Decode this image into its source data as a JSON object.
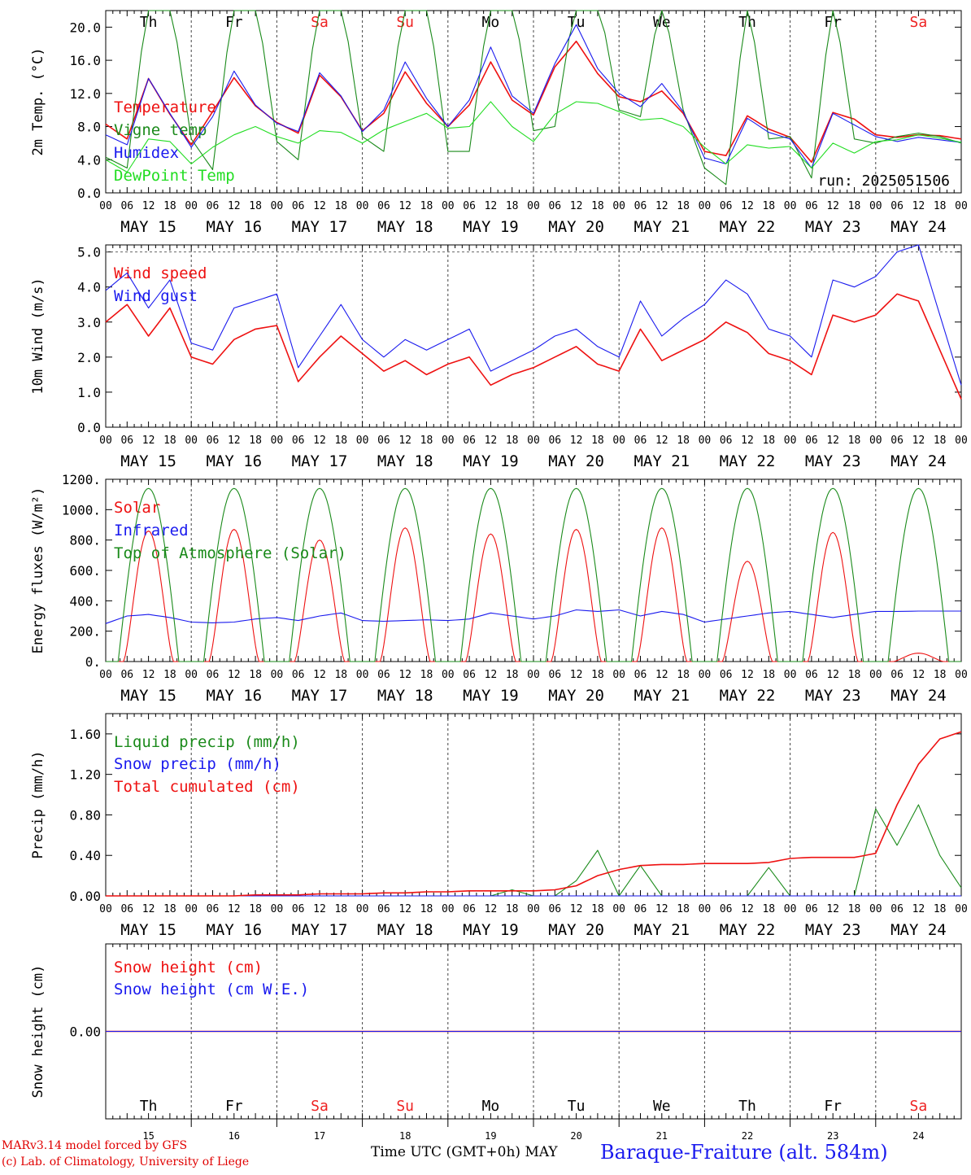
{
  "footer": {
    "model": "MARv3.14 model forced by GFS",
    "lab": "(c) Lab. of Climatology, University of Liege",
    "time_label": "Time UTC (GMT+0h) MAY",
    "station": "Baraque-Fraiture (alt. 584m)"
  },
  "colors": {
    "red": "#ee1111",
    "green": "#1a8a1a",
    "blue": "#1a1aee",
    "lightgreen": "#22dd22",
    "weekend": "#ee2222",
    "weekday": "#000000"
  },
  "chart_data": [
    {
      "type": "line",
      "ylabel": "2m Temp. (°C)",
      "yticks": [
        "0.0",
        "4.0",
        "8.0",
        "12.0",
        "16.0",
        "20.0"
      ],
      "ylim": [
        0,
        22
      ],
      "day_abbr": [
        "Th",
        "Fr",
        "Sa",
        "Su",
        "Mo",
        "Tu",
        "We",
        "Th",
        "Fr",
        "Sa"
      ],
      "weekend": [
        false,
        false,
        true,
        true,
        false,
        false,
        false,
        false,
        false,
        true
      ],
      "hour_ticks": [
        "00",
        "06",
        "12",
        "18"
      ],
      "date_labels": [
        "MAY 15",
        "MAY 16",
        "MAY 17",
        "MAY 18",
        "MAY 19",
        "MAY 20",
        "MAY 21",
        "MAY 22",
        "MAY 23",
        "MAY 24"
      ],
      "run_label": "run: 2025051506",
      "x_hours": [
        0,
        6,
        12,
        18,
        24,
        30,
        36,
        42,
        48,
        54,
        60,
        66,
        72,
        78,
        84,
        90,
        96,
        102,
        108,
        114,
        120,
        126,
        132,
        138,
        144,
        150,
        156,
        162,
        168,
        174,
        180,
        186,
        192,
        198,
        204,
        210,
        216,
        222,
        228,
        234,
        240
      ],
      "series": [
        {
          "name": "Temperature",
          "color": "#ee1111",
          "values": [
            8.3,
            6.5,
            13.8,
            9.5,
            5.8,
            9.8,
            13.9,
            10.5,
            8.5,
            7.2,
            14.2,
            11.6,
            7.5,
            9.6,
            14.6,
            10.8,
            8.0,
            10.6,
            15.8,
            11.2,
            9.4,
            15.2,
            18.3,
            14.4,
            11.6,
            11.0,
            12.3,
            9.6,
            5.0,
            4.5,
            9.3,
            7.7,
            6.7,
            3.7,
            9.7,
            8.9,
            7.0,
            6.7,
            7.0,
            6.9,
            6.5
          ]
        },
        {
          "name": "Vigne temp",
          "color": "#1a8a1a",
          "values": [
            4.3,
            3.0,
            24.0,
            24.0,
            6.5,
            2.8,
            24.0,
            24.0,
            6.2,
            4.0,
            24.0,
            24.0,
            6.8,
            5.0,
            24.0,
            24.0,
            5.0,
            5.0,
            24.0,
            24.0,
            7.5,
            8.0,
            24.0,
            24.0,
            10.0,
            9.2,
            24.0,
            10.0,
            3.0,
            1.0,
            24.0,
            6.5,
            6.8,
            1.8,
            24.0,
            6.5,
            6.0,
            6.8,
            7.2,
            6.8,
            6.0
          ]
        },
        {
          "name": "Humidex",
          "color": "#1a1aee",
          "values": [
            7.0,
            5.8,
            13.8,
            9.6,
            5.5,
            9.2,
            14.7,
            10.6,
            8.4,
            7.4,
            14.5,
            11.7,
            7.4,
            10.0,
            15.8,
            11.4,
            8.0,
            11.2,
            17.6,
            11.7,
            9.6,
            15.6,
            20.3,
            15.0,
            12.0,
            10.4,
            13.2,
            9.8,
            4.2,
            3.5,
            9.0,
            7.3,
            6.5,
            3.0,
            9.6,
            8.2,
            6.8,
            6.2,
            6.7,
            6.4,
            6.1
          ]
        },
        {
          "name": "DewPoint Temp",
          "color": "#22dd22",
          "values": [
            4.0,
            2.5,
            6.5,
            6.2,
            3.5,
            5.5,
            7.0,
            8.0,
            6.8,
            6.0,
            7.5,
            7.3,
            6.0,
            7.6,
            8.6,
            9.6,
            7.8,
            8.0,
            11.0,
            8.0,
            6.2,
            9.5,
            11.0,
            10.8,
            9.8,
            8.8,
            9.0,
            8.0,
            5.5,
            3.5,
            5.8,
            5.4,
            5.6,
            3.0,
            6.0,
            4.8,
            6.2,
            6.4,
            7.0,
            6.6,
            6.1
          ]
        }
      ]
    },
    {
      "type": "line",
      "ylabel": "10m Wind (m/s)",
      "yticks": [
        "0.0",
        "1.0",
        "2.0",
        "3.0",
        "4.0",
        "5.0"
      ],
      "ylim": [
        0,
        5.2
      ],
      "hour_ticks": [
        "00",
        "06",
        "12",
        "18"
      ],
      "date_labels": [
        "MAY 15",
        "MAY 16",
        "MAY 17",
        "MAY 18",
        "MAY 19",
        "MAY 20",
        "MAY 21",
        "MAY 22",
        "MAY 23",
        "MAY 24"
      ],
      "x_hours": [
        0,
        6,
        12,
        18,
        24,
        30,
        36,
        42,
        48,
        54,
        60,
        66,
        72,
        78,
        84,
        90,
        96,
        102,
        108,
        114,
        120,
        126,
        132,
        138,
        144,
        150,
        156,
        162,
        168,
        174,
        180,
        186,
        192,
        198,
        204,
        210,
        216,
        222,
        228,
        234,
        240
      ],
      "series": [
        {
          "name": "Wind speed",
          "color": "#ee1111",
          "values": [
            3.0,
            3.5,
            2.6,
            3.4,
            2.0,
            1.8,
            2.5,
            2.8,
            2.9,
            1.3,
            2.0,
            2.6,
            2.1,
            1.6,
            1.9,
            1.5,
            1.8,
            2.0,
            1.2,
            1.5,
            1.7,
            2.0,
            2.3,
            1.8,
            1.6,
            2.8,
            1.9,
            2.2,
            2.5,
            3.0,
            2.7,
            2.1,
            1.9,
            1.5,
            3.2,
            3.0,
            3.2,
            3.8,
            3.6,
            2.2,
            0.8
          ]
        },
        {
          "name": "Wind gust",
          "color": "#1a1aee",
          "values": [
            3.9,
            4.4,
            3.4,
            4.2,
            2.4,
            2.2,
            3.4,
            3.6,
            3.8,
            1.7,
            2.6,
            3.5,
            2.5,
            2.0,
            2.5,
            2.2,
            2.5,
            2.8,
            1.6,
            1.9,
            2.2,
            2.6,
            2.8,
            2.3,
            2.0,
            3.6,
            2.6,
            3.1,
            3.5,
            4.2,
            3.8,
            2.8,
            2.6,
            2.0,
            4.2,
            4.0,
            4.3,
            5.0,
            5.2,
            3.2,
            1.2
          ]
        }
      ]
    },
    {
      "type": "line",
      "ylabel": "Energy fluxes (W/m²)",
      "yticks": [
        "0.",
        "200.",
        "400.",
        "600.",
        "800.",
        "1000.",
        "1200."
      ],
      "ylim": [
        0,
        1200
      ],
      "hour_ticks": [
        "00",
        "06",
        "12",
        "18"
      ],
      "date_labels": [
        "MAY 15",
        "MAY 16",
        "MAY 17",
        "MAY 18",
        "MAY 19",
        "MAY 20",
        "MAY 21",
        "MAY 22",
        "MAY 23",
        "MAY 24"
      ],
      "toa_peak": 1140,
      "solar_peaks": [
        860,
        870,
        800,
        880,
        840,
        870,
        880,
        660,
        850,
        55
      ],
      "x_hours": [
        0,
        6,
        12,
        18,
        24,
        30,
        36,
        42,
        48,
        54,
        60,
        66,
        72,
        78,
        84,
        90,
        96,
        102,
        108,
        114,
        120,
        126,
        132,
        138,
        144,
        150,
        156,
        162,
        168,
        174,
        180,
        186,
        192,
        198,
        204,
        210,
        216,
        222,
        228,
        234,
        240
      ],
      "series": [
        {
          "name": "Solar",
          "color": "#ee1111"
        },
        {
          "name": "Infrared",
          "color": "#1a1aee",
          "values": [
            250,
            300,
            310,
            290,
            260,
            255,
            260,
            280,
            290,
            270,
            300,
            320,
            270,
            265,
            270,
            275,
            270,
            280,
            320,
            300,
            280,
            300,
            340,
            330,
            340,
            300,
            330,
            310,
            260,
            280,
            300,
            320,
            330,
            310,
            290,
            310,
            330,
            330,
            332,
            332,
            332
          ]
        },
        {
          "name": "Top of Atmosphere (Solar)",
          "color": "#1a8a1a"
        }
      ]
    },
    {
      "type": "line",
      "ylabel": "Precip (mm/h)",
      "yticks": [
        "0.00",
        "0.40",
        "0.80",
        "1.20",
        "1.60"
      ],
      "ylim": [
        0,
        1.8
      ],
      "hour_ticks": [
        "00",
        "06",
        "12",
        "18"
      ],
      "date_labels": [
        "MAY 15",
        "MAY 16",
        "MAY 17",
        "MAY 18",
        "MAY 19",
        "MAY 20",
        "MAY 21",
        "MAY 22",
        "MAY 23",
        "MAY 24"
      ],
      "x_hours": [
        0,
        6,
        12,
        18,
        24,
        30,
        36,
        42,
        48,
        54,
        60,
        66,
        72,
        78,
        84,
        90,
        96,
        102,
        108,
        114,
        120,
        126,
        132,
        138,
        144,
        150,
        156,
        162,
        168,
        174,
        180,
        186,
        192,
        198,
        204,
        210,
        216,
        222,
        228,
        234,
        240
      ],
      "series": [
        {
          "name": "Liquid precip (mm/h)",
          "color": "#1a8a1a",
          "values": [
            0,
            0,
            0,
            0,
            0,
            0,
            0,
            0,
            0,
            0,
            0,
            0,
            0,
            0,
            0,
            0,
            0,
            0,
            0,
            0.06,
            0,
            0,
            0.15,
            0.45,
            0,
            0.3,
            0,
            0,
            0,
            0,
            0,
            0.28,
            0,
            0,
            0,
            0,
            0.86,
            0.5,
            0.9,
            0.4,
            0.08
          ]
        },
        {
          "name": "Snow precip (mm/h)",
          "color": "#1a1aee",
          "values": [
            0,
            0,
            0,
            0,
            0,
            0,
            0,
            0,
            0,
            0,
            0,
            0,
            0,
            0,
            0,
            0,
            0,
            0,
            0,
            0,
            0,
            0,
            0,
            0,
            0,
            0,
            0,
            0,
            0,
            0,
            0,
            0,
            0,
            0,
            0,
            0,
            0,
            0,
            0,
            0,
            0
          ]
        },
        {
          "name": "Total cumulated (cm)",
          "color": "#ee1111",
          "values": [
            0,
            0,
            0,
            0,
            0,
            0,
            0,
            0.01,
            0.01,
            0.01,
            0.02,
            0.02,
            0.02,
            0.03,
            0.03,
            0.04,
            0.04,
            0.05,
            0.05,
            0.05,
            0.05,
            0.06,
            0.1,
            0.2,
            0.26,
            0.3,
            0.31,
            0.31,
            0.32,
            0.32,
            0.32,
            0.33,
            0.37,
            0.38,
            0.38,
            0.38,
            0.42,
            0.9,
            1.3,
            1.55,
            1.62
          ]
        }
      ]
    },
    {
      "type": "line",
      "ylabel": "Snow height (cm)",
      "yticks": [
        "0.00"
      ],
      "ylim": [
        -1,
        1
      ],
      "day_abbr": [
        "Th",
        "Fr",
        "Sa",
        "Su",
        "Mo",
        "Tu",
        "We",
        "Th",
        "Fr",
        "Sa"
      ],
      "weekend": [
        false,
        false,
        true,
        true,
        false,
        false,
        false,
        false,
        false,
        true
      ],
      "day_numbers": [
        "15",
        "16",
        "17",
        "18",
        "19",
        "20",
        "21",
        "22",
        "23",
        "24"
      ],
      "x_hours": [
        0,
        240
      ],
      "series": [
        {
          "name": "Snow height (cm)",
          "color": "#ee1111",
          "values": [
            0,
            0
          ]
        },
        {
          "name": "Snow height (cm W.E.)",
          "color": "#1a1aee",
          "values": [
            0,
            0
          ]
        }
      ]
    }
  ]
}
